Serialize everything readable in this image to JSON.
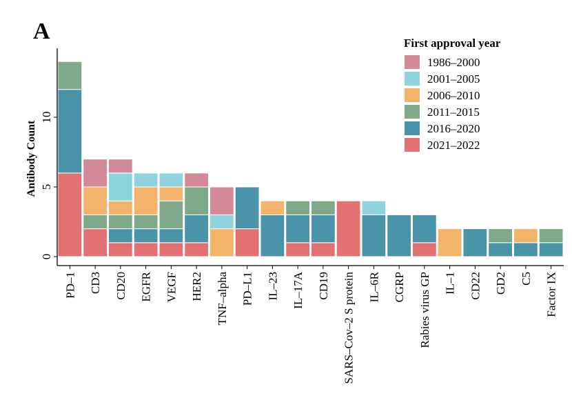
{
  "panel_label": "A",
  "colors": {
    "1986–2000": "#d4899a",
    "2001–2005": "#8fd3de",
    "2006–2010": "#f2b36b",
    "2011–2015": "#7fa98b",
    "2016–2020": "#4a93a8",
    "2021–2022": "#e27272"
  },
  "chart_data": {
    "type": "bar",
    "stacked": true,
    "title": "",
    "xlabel": "",
    "ylabel": "Antibody Count",
    "ylim": [
      0,
      14.2
    ],
    "yticks": [
      0,
      5,
      10
    ],
    "grid": false,
    "legend": {
      "title": "First approval year",
      "position": "top-right"
    },
    "categories": [
      "PD–1",
      "CD3",
      "CD20",
      "EGFR",
      "VEGF",
      "HER2",
      "TNF–alpha",
      "PD–L1",
      "IL–23",
      "IL–17A",
      "CD19",
      "SARS–Cov–2 S protein",
      "IL–6R",
      "CGRP",
      "Rabies virus GP",
      "IL–1",
      "CD22",
      "GD2",
      "C5",
      "Factor IX"
    ],
    "series": [
      {
        "name": "2021–2022",
        "values": [
          6,
          2,
          1,
          1,
          1,
          1,
          0,
          2,
          0,
          1,
          1,
          4,
          0,
          0,
          1,
          0,
          0,
          0,
          0,
          0
        ]
      },
      {
        "name": "2016–2020",
        "values": [
          6,
          0,
          1,
          1,
          1,
          2,
          0,
          3,
          3,
          2,
          2,
          0,
          3,
          3,
          2,
          0,
          2,
          1,
          1,
          1
        ]
      },
      {
        "name": "2011–2015",
        "values": [
          2,
          1,
          1,
          1,
          2,
          2,
          0,
          0,
          0,
          1,
          1,
          0,
          0,
          0,
          0,
          0,
          0,
          1,
          0,
          1
        ]
      },
      {
        "name": "2006–2010",
        "values": [
          0,
          2,
          1,
          2,
          1,
          0,
          2,
          0,
          1,
          0,
          0,
          0,
          0,
          0,
          0,
          2,
          0,
          0,
          1,
          0
        ]
      },
      {
        "name": "2001–2005",
        "values": [
          0,
          0,
          2,
          1,
          1,
          0,
          1,
          0,
          0,
          0,
          0,
          0,
          1,
          0,
          0,
          0,
          0,
          0,
          0,
          0
        ]
      },
      {
        "name": "1986–2000",
        "values": [
          0,
          2,
          1,
          0,
          0,
          1,
          2,
          0,
          0,
          0,
          0,
          0,
          0,
          0,
          0,
          0,
          0,
          0,
          0,
          0
        ]
      }
    ],
    "legend_order": [
      "1986–2000",
      "2001–2005",
      "2006–2010",
      "2011–2015",
      "2016–2020",
      "2021–2022"
    ]
  }
}
